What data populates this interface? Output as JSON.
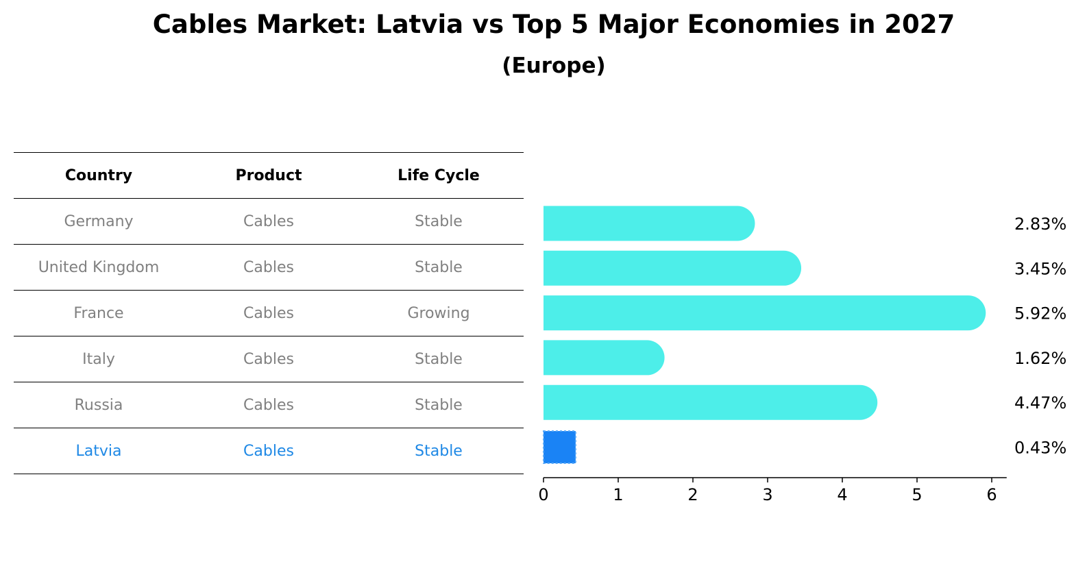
{
  "title": "Cables Market: Latvia vs Top 5 Major Economies in 2027",
  "subtitle": "(Europe)",
  "table": {
    "headers": [
      "Country",
      "Product",
      "Life Cycle"
    ],
    "rows": [
      [
        "Germany",
        "Cables",
        "Stable"
      ],
      [
        "United Kingdom",
        "Cables",
        "Stable"
      ],
      [
        "France",
        "Cables",
        "Growing"
      ],
      [
        "Italy",
        "Cables",
        "Stable"
      ],
      [
        "Russia",
        "Cables",
        "Stable"
      ],
      [
        "Latvia",
        "Cables",
        "Stable"
      ]
    ],
    "highlight_row": 5
  },
  "colors": {
    "bar": "#4deee9",
    "highlight_bar": "#1a83f5",
    "highlight_text": "#1e88e5",
    "muted_text": "#808080"
  },
  "chart_data": {
    "type": "bar",
    "orientation": "horizontal",
    "categories": [
      "Germany",
      "United Kingdom",
      "France",
      "Italy",
      "Russia",
      "Latvia"
    ],
    "values": [
      2.83,
      3.45,
      5.92,
      1.62,
      4.47,
      0.43
    ],
    "value_labels": [
      "2.83%",
      "3.45%",
      "5.92%",
      "1.62%",
      "4.47%",
      "0.43%"
    ],
    "xlim": [
      0,
      6.2
    ],
    "xticks": [
      0,
      1,
      2,
      3,
      4,
      5,
      6
    ],
    "xtick_labels": [
      "0",
      "1",
      "2",
      "3",
      "4",
      "5",
      "6"
    ],
    "title": "Cables Market: Latvia vs Top 5 Major Economies in 2027",
    "subtitle": "(Europe)",
    "xlabel": "",
    "ylabel": "",
    "grid": false,
    "highlight_category": "Latvia"
  }
}
